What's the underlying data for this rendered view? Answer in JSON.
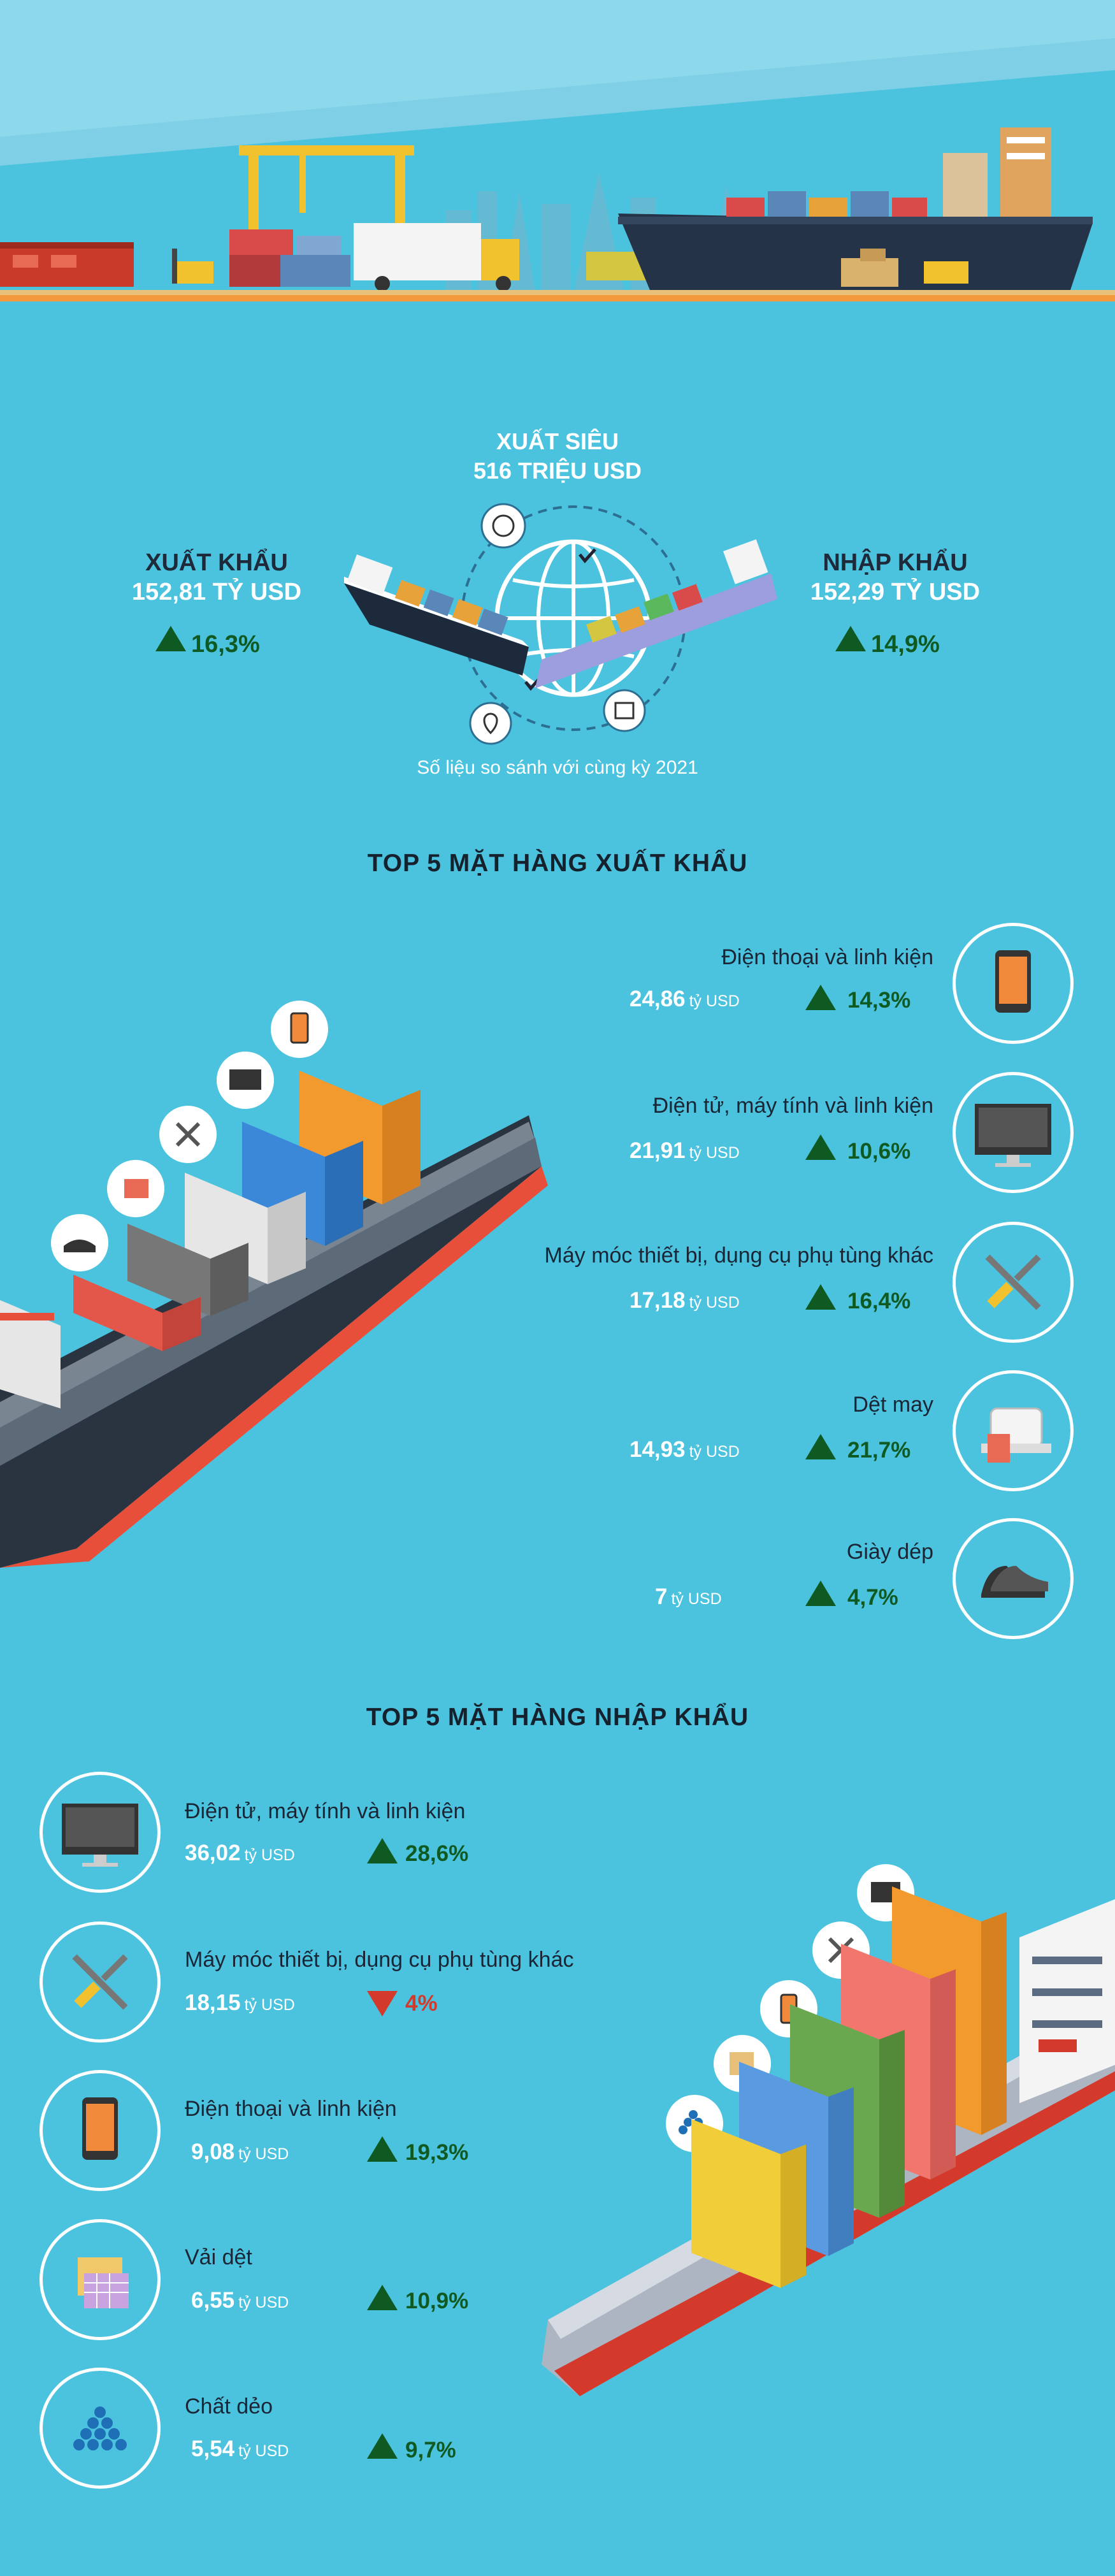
{
  "colors": {
    "background": "#4cc3de",
    "sky": "#7fd3ea",
    "up": "#0f5a22",
    "down": "#d33a2c",
    "title_white": "#ffffff",
    "title_dark": "#16212e"
  },
  "summary": {
    "surplus_label": "XUẤT SIÊU",
    "surplus_value": "516 TRIỆU USD",
    "export_label": "XUẤT KHẨU",
    "export_value": "152,81 TỶ USD",
    "export_change": "16,3%",
    "import_label": "NHẬP KHẨU",
    "import_value": "152,29 TỶ USD",
    "import_change": "14,9%",
    "note": "Số liệu so sánh với cùng kỳ 2021"
  },
  "exports": {
    "title": "TOP 5 MẶT HÀNG XUẤT KHẨU",
    "unit": "tỷ USD",
    "items": [
      {
        "name": "Điện thoại và linh kiện",
        "value": "24,86",
        "change": "14,3%",
        "direction": "up",
        "icon": "smartphone-icon"
      },
      {
        "name": "Điện tử, máy tính và linh kiện",
        "value": "21,91",
        "change": "10,6%",
        "direction": "up",
        "icon": "monitor-icon"
      },
      {
        "name": "Máy móc thiết bị, dụng cụ phụ tùng khác",
        "value": "17,18",
        "change": "16,4%",
        "direction": "up",
        "icon": "tools-icon"
      },
      {
        "name": "Dệt may",
        "value": "14,93",
        "change": "21,7%",
        "direction": "up",
        "icon": "sewing-machine-icon"
      },
      {
        "name": "Giày dép",
        "value": "7",
        "change": "4,7%",
        "direction": "up",
        "icon": "shoe-icon"
      }
    ]
  },
  "imports": {
    "title": "TOP 5 MẶT HÀNG NHẬP KHẨU",
    "unit": "tỷ USD",
    "items": [
      {
        "name": "Điện tử, máy tính và linh kiện",
        "value": "36,02",
        "change": "28,6%",
        "direction": "up",
        "icon": "monitor-icon"
      },
      {
        "name": "Máy móc thiết bị, dụng cụ phụ tùng khác",
        "value": "18,15",
        "change": "4%",
        "direction": "down",
        "icon": "tools-icon"
      },
      {
        "name": "Điện thoại và linh kiện",
        "value": "9,08",
        "change": "19,3%",
        "direction": "up",
        "icon": "smartphone-icon"
      },
      {
        "name": "Vải dệt",
        "value": "6,55",
        "change": "10,9%",
        "direction": "up",
        "icon": "fabric-icon"
      },
      {
        "name": "Chất dẻo",
        "value": "5,54",
        "change": "9,7%",
        "direction": "up",
        "icon": "plastic-pellets-icon"
      }
    ]
  }
}
